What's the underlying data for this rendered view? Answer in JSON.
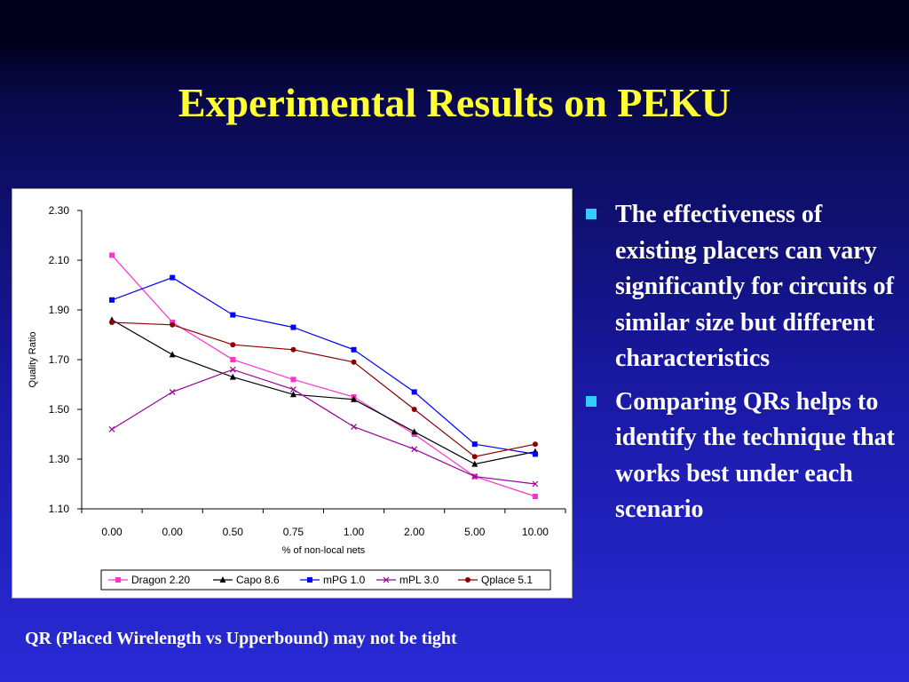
{
  "slide": {
    "title": "Experimental Results on PEKU",
    "bullets": [
      "The effectiveness of existing placers can vary significantly for circuits of similar size but different characteristics",
      "Comparing QRs helps to identify the technique that works best under each scenario"
    ],
    "footnote": "QR (Placed Wirelength vs Upperbound) may not be tight",
    "colors": {
      "title": "#ffff33",
      "text": "#ffffff",
      "bullet": "#33ccff"
    }
  },
  "chart_data": {
    "type": "line",
    "title": "",
    "xlabel": "% of non-local nets",
    "ylabel": "Quality Ratio",
    "categories": [
      "0.00",
      "0.00",
      "0.50",
      "0.75",
      "1.00",
      "2.00",
      "5.00",
      "10.00"
    ],
    "ylim": [
      1.1,
      2.3
    ],
    "yticks": [
      "1.10",
      "1.30",
      "1.50",
      "1.70",
      "1.90",
      "2.10",
      "2.30"
    ],
    "grid": false,
    "legend_position": "bottom",
    "series": [
      {
        "name": "Dragon 2.20",
        "color": "#ff33cc",
        "marker": "square",
        "values": [
          2.12,
          1.85,
          1.7,
          1.62,
          1.55,
          1.4,
          1.23,
          1.15
        ]
      },
      {
        "name": "Capo 8.6",
        "color": "#000000",
        "marker": "triangle",
        "values": [
          1.86,
          1.72,
          1.63,
          1.56,
          1.54,
          1.41,
          1.28,
          1.33
        ]
      },
      {
        "name": "mPG 1.0",
        "color": "#0000ff",
        "marker": "square",
        "values": [
          1.94,
          2.03,
          1.88,
          1.83,
          1.74,
          1.57,
          1.36,
          1.32
        ]
      },
      {
        "name": "mPL 3.0",
        "color": "#990099",
        "marker": "cross",
        "values": [
          1.42,
          1.57,
          1.66,
          1.58,
          1.43,
          1.34,
          1.23,
          1.2
        ]
      },
      {
        "name": "Qplace 5.1",
        "color": "#8b0000",
        "marker": "circle",
        "values": [
          1.85,
          1.84,
          1.76,
          1.74,
          1.69,
          1.5,
          1.31,
          1.36
        ]
      }
    ]
  }
}
